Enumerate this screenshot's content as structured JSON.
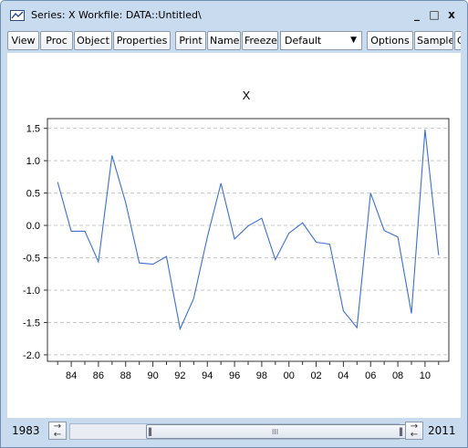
{
  "window": {
    "title": "Series: X   Workfile: DATA::Untitled\\",
    "minimize_glyph": "_",
    "maximize_glyph": "□",
    "close_glyph": "x",
    "icon": "series-window-icon"
  },
  "toolbar": {
    "buttons": [
      "View",
      "Proc",
      "Object",
      "Properties",
      "Print",
      "Name",
      "Freeze",
      "Options",
      "Sample",
      "G"
    ],
    "combo_value": "Default"
  },
  "statusbar": {
    "start": "1983",
    "end": "2011",
    "thumb_grip": "III"
  },
  "chart_data": {
    "type": "line",
    "title": "X",
    "xlabel": "",
    "ylabel": "",
    "x": [
      1983,
      1984,
      1985,
      1986,
      1987,
      1988,
      1989,
      1990,
      1991,
      1992,
      1993,
      1994,
      1995,
      1996,
      1997,
      1998,
      1999,
      2000,
      2001,
      2002,
      2003,
      2004,
      2005,
      2006,
      2007,
      2008,
      2009,
      2010,
      2011
    ],
    "series": [
      {
        "values": [
          0.67,
          -0.09,
          -0.09,
          -0.56,
          1.08,
          0.35,
          -0.58,
          -0.6,
          -0.48,
          -1.6,
          -1.13,
          -0.18,
          0.65,
          -0.21,
          -0.01,
          0.11,
          -0.53,
          -0.12,
          0.04,
          -0.26,
          -0.29,
          -1.32,
          -1.58,
          0.5,
          -0.08,
          -0.18,
          -1.36,
          1.48,
          -0.46
        ]
      }
    ],
    "ylim": [
      -2.1,
      1.65
    ],
    "yticks": [
      "1.5",
      "1.0",
      "0.5",
      "0.0",
      "-0.5",
      "-1.0",
      "-1.5",
      "-2.0"
    ],
    "ytick_values": [
      1.5,
      1.0,
      0.5,
      0.0,
      -0.5,
      -1.0,
      -1.5,
      -2.0
    ],
    "xticks": [
      "84",
      "86",
      "88",
      "90",
      "92",
      "94",
      "96",
      "98",
      "00",
      "02",
      "04",
      "06",
      "08",
      "10"
    ],
    "xtick_years": [
      1984,
      1986,
      1988,
      1990,
      1992,
      1994,
      1996,
      1998,
      2000,
      2002,
      2004,
      2006,
      2008,
      2010
    ],
    "grid": true,
    "line_color": "#3d6fd1"
  }
}
